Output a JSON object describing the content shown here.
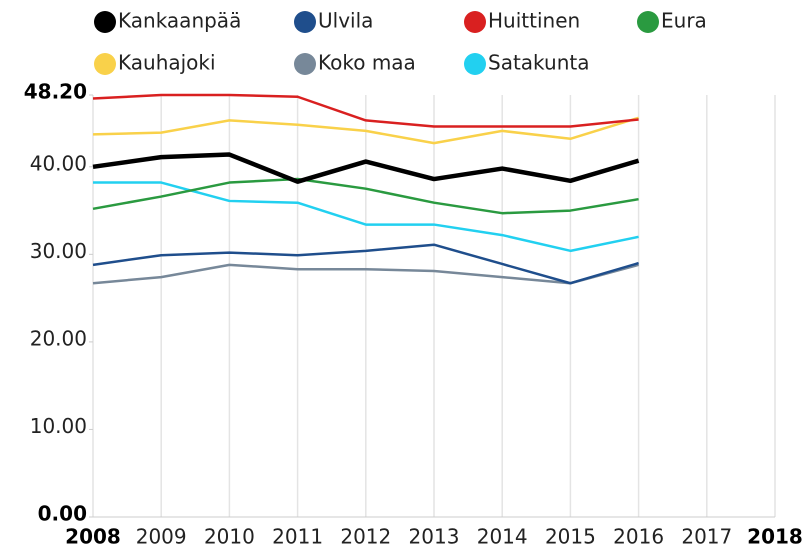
{
  "chart_data": {
    "type": "line",
    "x": [
      2008,
      2009,
      2010,
      2011,
      2012,
      2013,
      2014,
      2015,
      2016
    ],
    "xlim": [
      2008,
      2018
    ],
    "xticks": [
      2008,
      2009,
      2010,
      2011,
      2012,
      2013,
      2014,
      2015,
      2016,
      2017,
      2018
    ],
    "ylim": [
      0,
      48.2
    ],
    "yticks": [
      {
        "value": 0,
        "label": "0.00"
      },
      {
        "value": 10,
        "label": "10.00"
      },
      {
        "value": 20,
        "label": "20.00"
      },
      {
        "value": 30,
        "label": "30.00"
      },
      {
        "value": 40,
        "label": "40.00"
      },
      {
        "value": 48.2,
        "label": "48.20"
      }
    ],
    "grid": true,
    "series": [
      {
        "name": "Kankaanpää",
        "color": "#000000",
        "values": [
          40.0,
          41.1,
          41.4,
          38.3,
          40.6,
          38.6,
          39.8,
          38.4,
          40.7
        ]
      },
      {
        "name": "Ulvila",
        "color": "#1f4e8c",
        "values": [
          28.8,
          29.9,
          30.2,
          29.9,
          30.4,
          31.1,
          28.9,
          26.7,
          29.0
        ]
      },
      {
        "name": "Huittinen",
        "color": "#d92020",
        "values": [
          47.8,
          48.2,
          48.2,
          48.0,
          45.3,
          44.6,
          44.6,
          44.6,
          45.4
        ]
      },
      {
        "name": "Eura",
        "color": "#2a9a40",
        "values": [
          35.2,
          36.6,
          38.2,
          38.6,
          37.5,
          35.9,
          34.7,
          35.0,
          36.3
        ]
      },
      {
        "name": "Kauhajoki",
        "color": "#f9d14a",
        "values": [
          43.7,
          43.9,
          45.3,
          44.8,
          44.1,
          42.7,
          44.1,
          43.2,
          45.6
        ]
      },
      {
        "name": "Koko maa",
        "color": "#778899",
        "values": [
          26.7,
          27.4,
          28.8,
          28.3,
          28.3,
          28.1,
          27.4,
          26.7,
          28.8
        ]
      },
      {
        "name": "Satakunta",
        "color": "#22d0f0",
        "values": [
          38.2,
          38.2,
          36.1,
          35.9,
          33.4,
          33.4,
          32.2,
          30.4,
          32.0
        ]
      }
    ]
  }
}
